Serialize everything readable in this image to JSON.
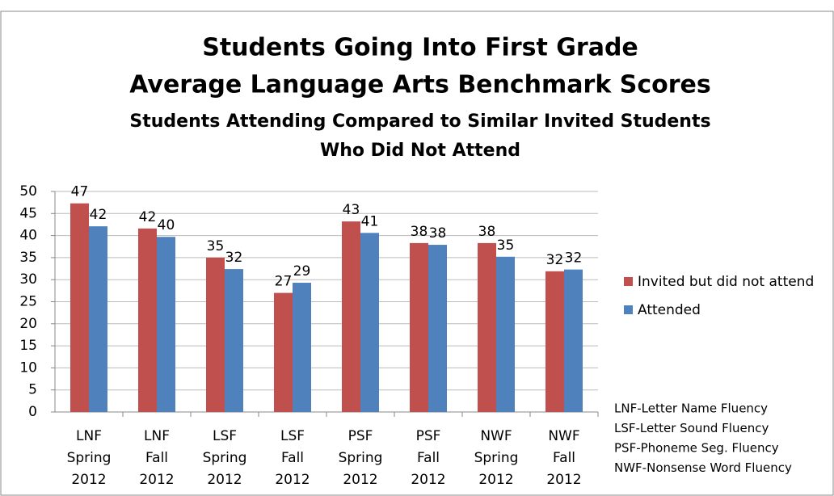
{
  "chart_data": {
    "type": "bar",
    "title": [
      "Students Going Into First Grade",
      "Average Language Arts Benchmark Scores"
    ],
    "subtitle": [
      "Students Attending Compared to Similar Invited Students",
      "Who Did Not Attend"
    ],
    "categories": [
      [
        "LNF",
        "Spring",
        "2012"
      ],
      [
        "LNF",
        "Fall",
        "2012"
      ],
      [
        "LSF",
        "Spring",
        "2012"
      ],
      [
        "LSF",
        "Fall",
        "2012"
      ],
      [
        "PSF",
        "Spring",
        "2012"
      ],
      [
        "PSF",
        "Fall",
        "2012"
      ],
      [
        "NWF",
        "Spring",
        "2012"
      ],
      [
        "NWF",
        "Fall",
        "2012"
      ]
    ],
    "series": [
      {
        "name": "Invited but did not attend",
        "color": "#c0504d",
        "values": [
          47.3,
          41.6,
          35,
          27,
          43.2,
          38.3,
          38.3,
          31.9
        ],
        "value_labels": [
          "47",
          "42",
          "35",
          "27",
          "43",
          "38",
          "38",
          "32"
        ]
      },
      {
        "name": "Attended",
        "color": "#4f81bd",
        "values": [
          42.1,
          39.7,
          32.4,
          29.3,
          40.6,
          37.9,
          35.2,
          32.3
        ],
        "value_labels": [
          "42",
          "40",
          "32",
          "29",
          "41",
          "38",
          "35",
          "32"
        ]
      }
    ],
    "ylim": [
      0,
      50
    ],
    "yticks": [
      0,
      5,
      10,
      15,
      20,
      25,
      30,
      35,
      40,
      45,
      50
    ],
    "grid": true,
    "legend": "right",
    "notes": [
      "LNF-Letter Name Fluency",
      "LSF-Letter Sound Fluency",
      "PSF-Phoneme Seg. Fluency",
      "NWF-Nonsense Word Fluency"
    ]
  }
}
